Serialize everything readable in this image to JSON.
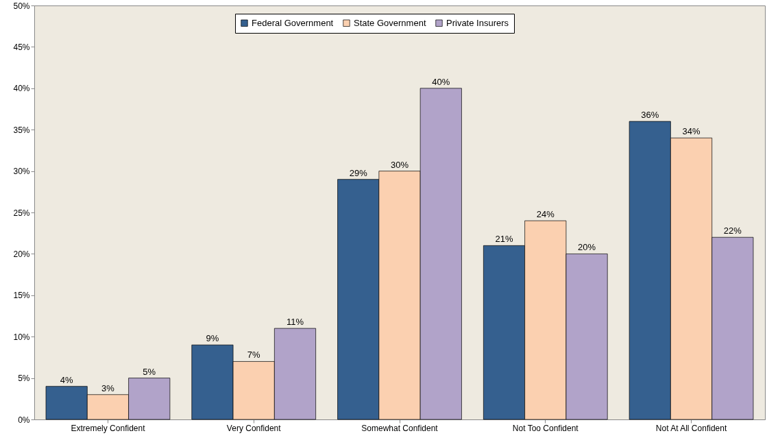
{
  "chart_data": {
    "type": "bar",
    "categories": [
      "Extremely Confident",
      "Very Confident",
      "Somewhat Confident",
      "Not Too Confident",
      "Not At All Confident"
    ],
    "series": [
      {
        "name": "Federal Government",
        "color": "#35608f",
        "values": [
          4,
          9,
          29,
          21,
          36
        ],
        "value_labels": [
          "4%",
          "9%",
          "29%",
          "21%",
          "36%"
        ]
      },
      {
        "name": "State Government",
        "color": "#fbd0b0",
        "values": [
          3,
          7,
          30,
          24,
          34
        ],
        "value_labels": [
          "3%",
          "7%",
          "30%",
          "24%",
          "34%"
        ]
      },
      {
        "name": "Private Insurers",
        "color": "#b1a3c9",
        "values": [
          5,
          11,
          40,
          20,
          22
        ],
        "value_labels": [
          "5%",
          "11%",
          "40%",
          "20%",
          "22%"
        ]
      }
    ],
    "ylim": [
      0,
      50
    ],
    "yticks": [
      {
        "value": 0,
        "label": "0%"
      },
      {
        "value": 5,
        "label": "5%"
      },
      {
        "value": 10,
        "label": "10%"
      },
      {
        "value": 15,
        "label": "15%"
      },
      {
        "value": 20,
        "label": "20%"
      },
      {
        "value": 25,
        "label": "25%"
      },
      {
        "value": 30,
        "label": "30%"
      },
      {
        "value": 35,
        "label": "35%"
      },
      {
        "value": 40,
        "label": "40%"
      },
      {
        "value": 45,
        "label": "45%"
      },
      {
        "value": 50,
        "label": "50%"
      }
    ],
    "grid": false,
    "legend": "top"
  }
}
